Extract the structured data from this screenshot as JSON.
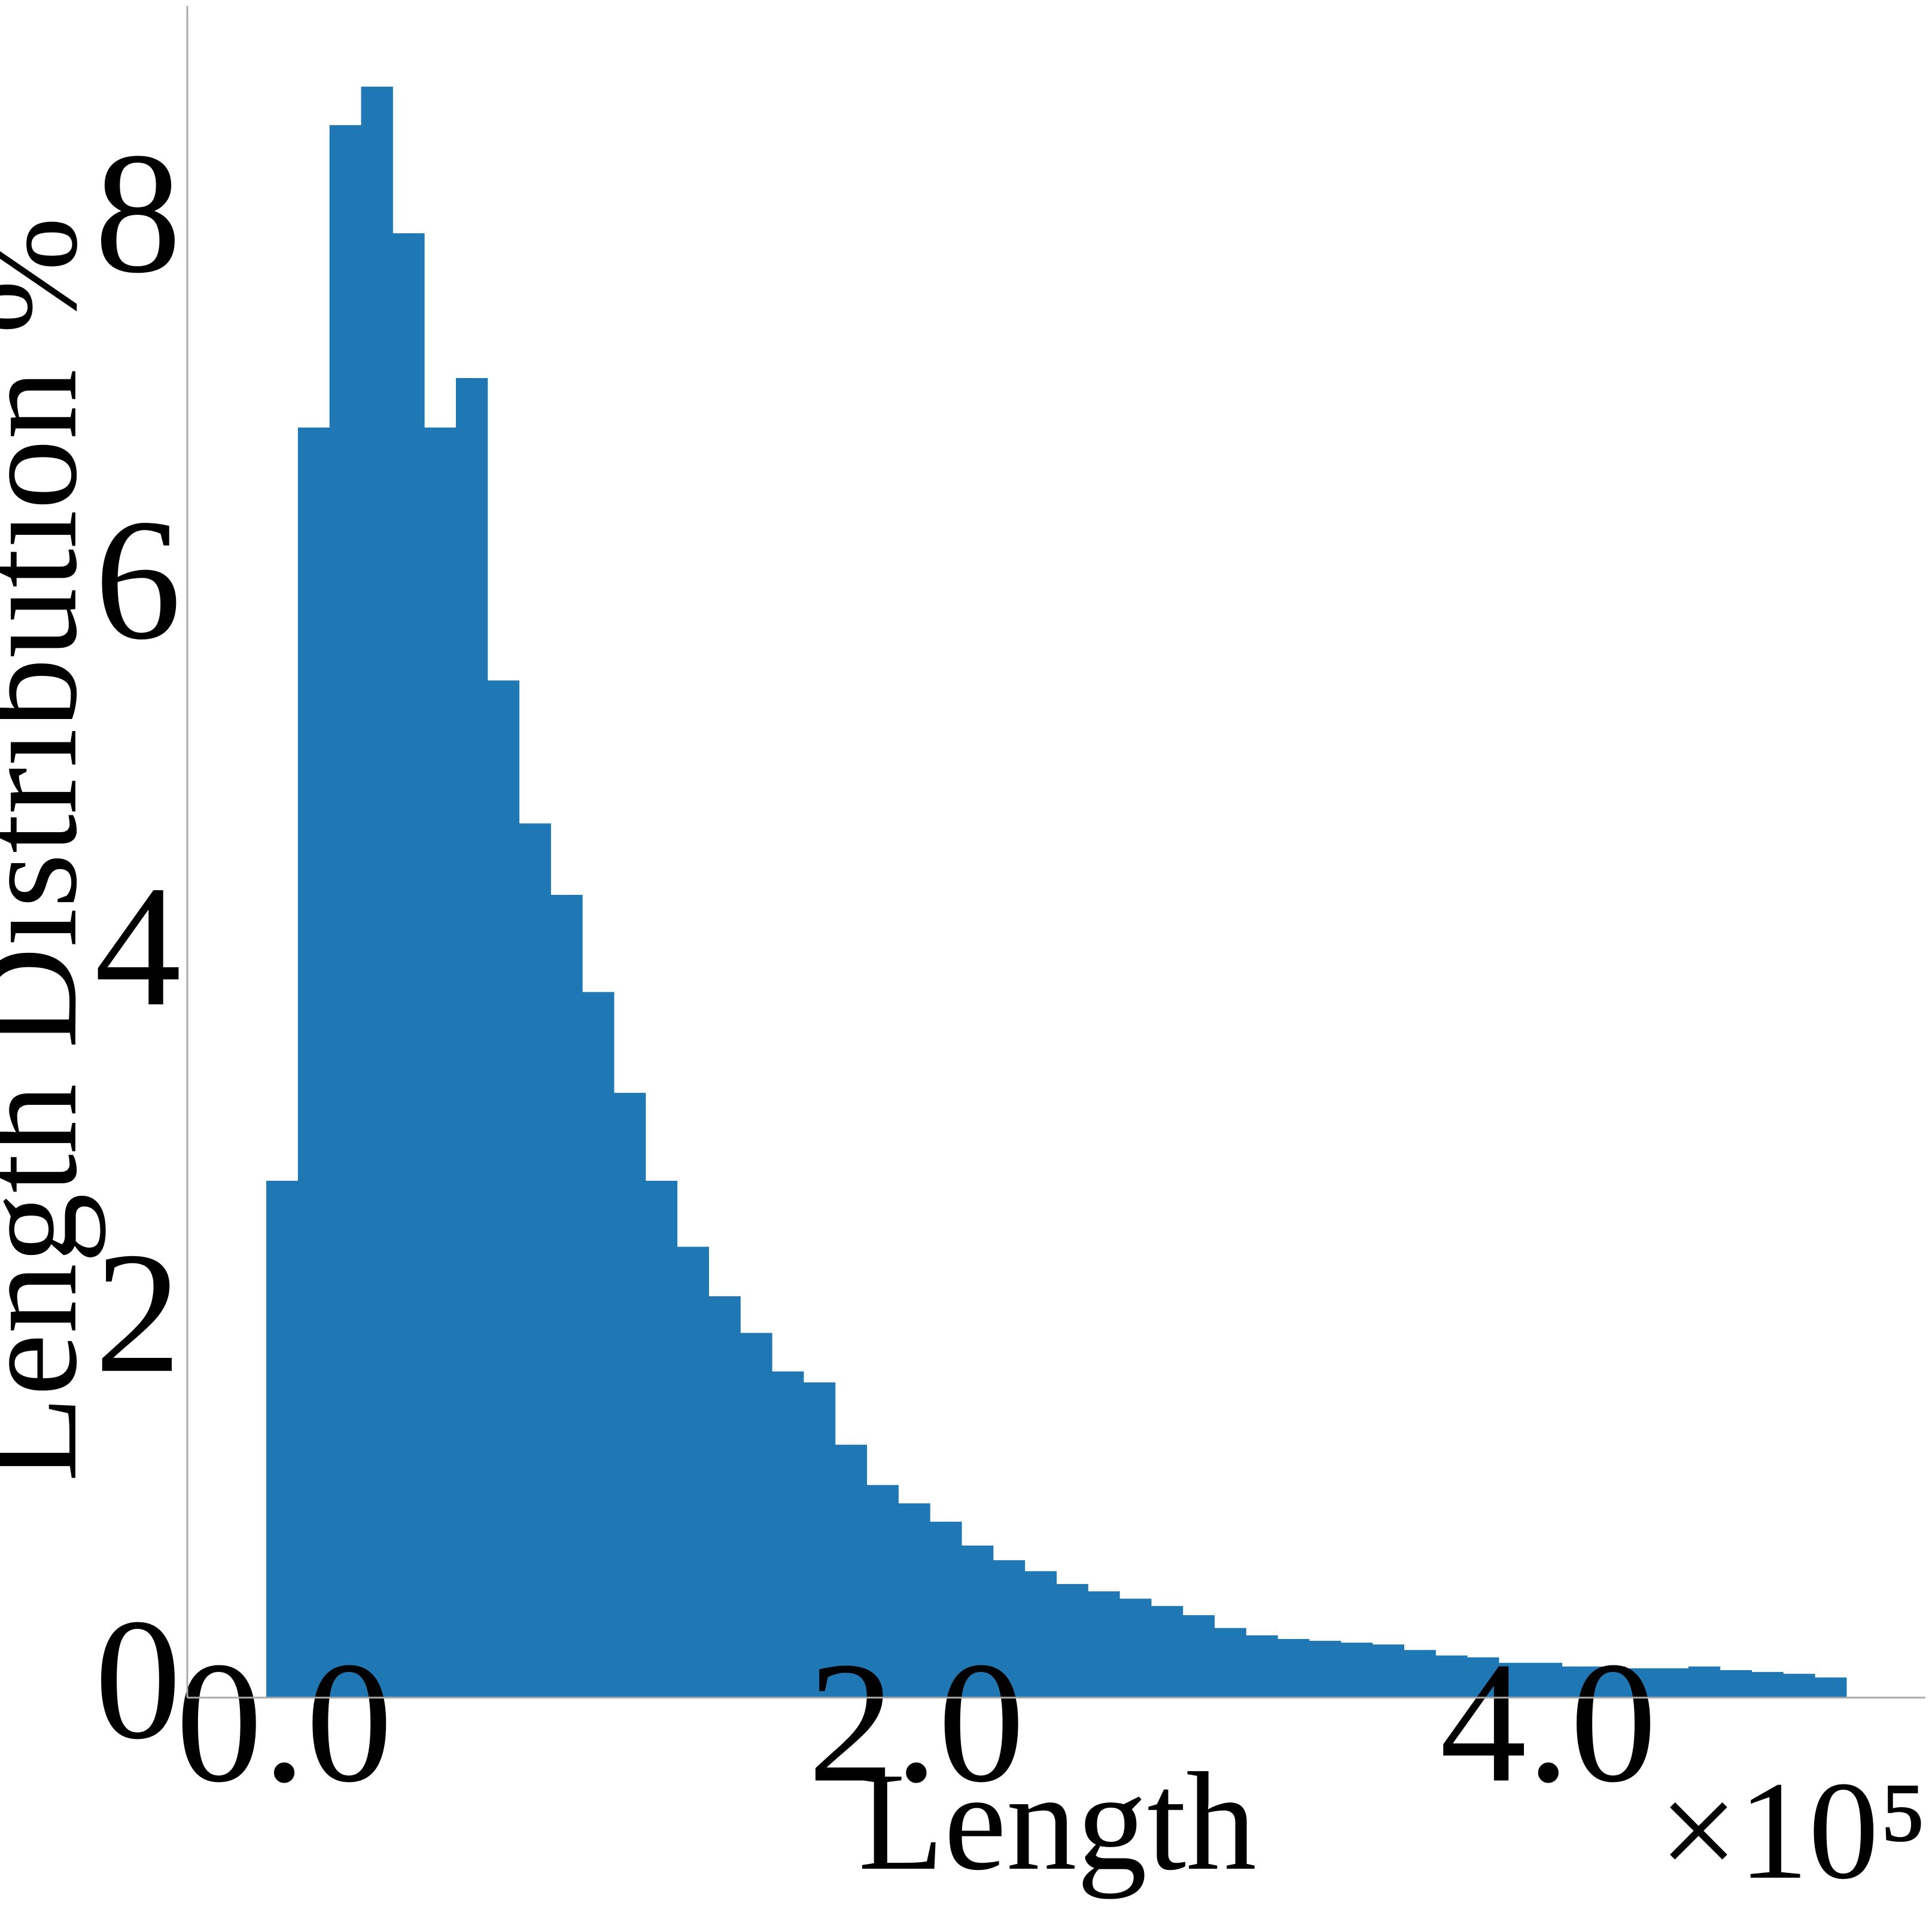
{
  "chart_data": {
    "type": "histogram",
    "xlabel": "Length",
    "ylabel": "Length Distribution %",
    "x_offset_label": "×10⁵",
    "color": "#1f77b4",
    "bins": [
      0,
      10000,
      20000,
      30000,
      40000,
      50000,
      60000,
      70000,
      80000,
      90000,
      100000,
      110000,
      120000,
      130000,
      140000,
      150000,
      160000,
      170000,
      180000,
      190000,
      200000,
      210000,
      220000,
      230000,
      240000,
      250000,
      260000,
      270000,
      280000,
      290000,
      300000,
      310000,
      320000,
      330000,
      340000,
      350000,
      360000,
      370000,
      380000,
      390000,
      400000,
      410000,
      420000,
      430000,
      440000,
      450000,
      460000,
      470000,
      480000,
      490000,
      500000
    ],
    "values": [
      2.82,
      6.93,
      8.58,
      8.79,
      7.99,
      6.93,
      7.2,
      5.55,
      4.77,
      4.38,
      3.85,
      3.3,
      2.82,
      2.46,
      2.19,
      1.99,
      1.78,
      1.72,
      1.38,
      1.16,
      1.06,
      0.96,
      0.83,
      0.75,
      0.69,
      0.62,
      0.58,
      0.54,
      0.5,
      0.45,
      0.38,
      0.34,
      0.32,
      0.31,
      0.3,
      0.29,
      0.26,
      0.23,
      0.22,
      0.19,
      0.19,
      0.17,
      0.17,
      0.16,
      0.16,
      0.17,
      0.15,
      0.14,
      0.13,
      0.11
    ],
    "xlim": [
      -25000,
      525000
    ],
    "ylim": [
      0,
      9.23
    ],
    "xticks": [
      {
        "value": 0,
        "label": "0.0"
      },
      {
        "value": 200000,
        "label": "2.0"
      },
      {
        "value": 400000,
        "label": "4.0"
      }
    ],
    "yticks": [
      0,
      2,
      4,
      6,
      8
    ],
    "grid": false
  }
}
